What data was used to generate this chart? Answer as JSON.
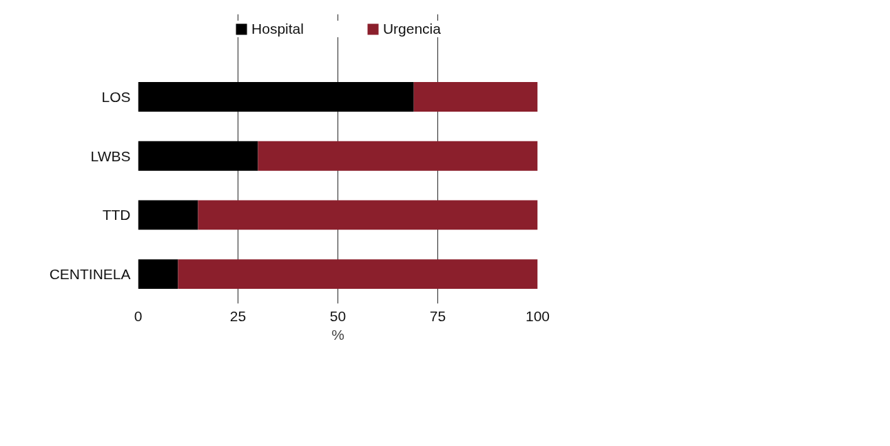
{
  "chart_data": {
    "type": "bar",
    "orientation": "horizontal",
    "stacked": true,
    "categories": [
      "LOS",
      "LWBS",
      "TTD",
      "CENTINELA"
    ],
    "series": [
      {
        "name": "Hospital",
        "color": "#000000",
        "values": [
          69,
          30,
          15,
          10
        ]
      },
      {
        "name": "Urgencia",
        "color": "#8b1f2c",
        "values": [
          31,
          70,
          85,
          90
        ]
      }
    ],
    "xlabel": "%",
    "xlim": [
      0,
      100
    ],
    "xticks": [
      0,
      25,
      50,
      75,
      100
    ],
    "grid": "x",
    "legend": "top"
  }
}
